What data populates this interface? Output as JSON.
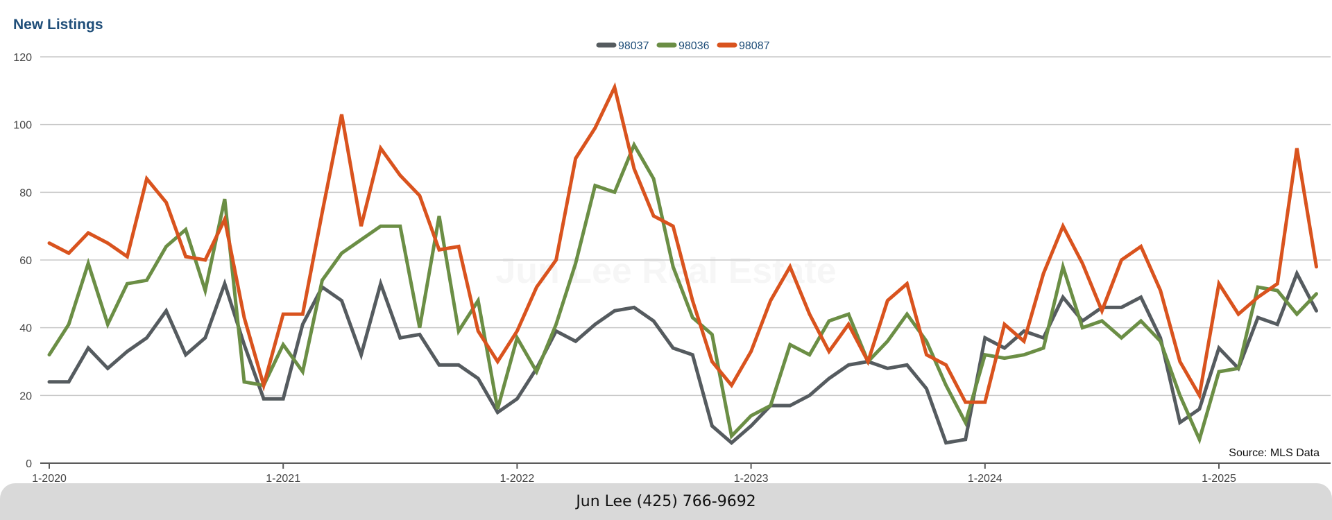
{
  "title": "New Listings",
  "watermark": "Jun Lee Real Estate",
  "source_note": "Source: MLS Data",
  "footer": "Jun Lee (425) 766-9692",
  "chart_data": {
    "type": "line",
    "title": "New Listings",
    "xlabel": "",
    "ylabel": "",
    "ylim": [
      0,
      120
    ],
    "yticks": [
      "0",
      "20",
      "40",
      "60",
      "80",
      "100",
      "120"
    ],
    "xticks": [
      {
        "index": 0,
        "label": "1-2020"
      },
      {
        "index": 12,
        "label": "1-2021"
      },
      {
        "index": 24,
        "label": "1-2022"
      },
      {
        "index": 36,
        "label": "1-2023"
      },
      {
        "index": 48,
        "label": "1-2024"
      },
      {
        "index": 60,
        "label": "1-2025"
      }
    ],
    "x_start": "2020-01",
    "x_end": "2025-06",
    "grid": true,
    "legend_position": "top-center",
    "series": [
      {
        "name": "98037",
        "color": "#555b5f",
        "values": [
          24,
          24,
          34,
          28,
          33,
          37,
          45,
          32,
          37,
          53,
          35,
          19,
          19,
          41,
          52,
          48,
          32,
          53,
          37,
          38,
          29,
          29,
          25,
          15,
          19,
          28,
          39,
          36,
          41,
          45,
          46,
          42,
          34,
          32,
          11,
          6,
          11,
          17,
          17,
          20,
          25,
          29,
          30,
          28,
          29,
          22,
          6,
          7,
          37,
          34,
          39,
          37,
          49,
          42,
          46,
          46,
          49,
          37,
          12,
          16,
          34,
          28,
          43,
          41,
          56,
          45
        ]
      },
      {
        "name": "98036",
        "color": "#6b8e45",
        "values": [
          32,
          41,
          59,
          41,
          53,
          54,
          64,
          69,
          51,
          78,
          24,
          23,
          35,
          27,
          54,
          62,
          66,
          70,
          70,
          40,
          73,
          39,
          48,
          16,
          37,
          27,
          41,
          59,
          82,
          80,
          94,
          84,
          58,
          43,
          38,
          8,
          14,
          17,
          35,
          32,
          42,
          44,
          30,
          36,
          44,
          36,
          23,
          12,
          32,
          31,
          32,
          34,
          58,
          40,
          42,
          37,
          42,
          36,
          20,
          7,
          27,
          28,
          52,
          51,
          44,
          50
        ]
      },
      {
        "name": "98087",
        "color": "#d9531e",
        "values": [
          65,
          62,
          68,
          65,
          61,
          84,
          77,
          61,
          60,
          72,
          43,
          23,
          44,
          44,
          74,
          103,
          70,
          93,
          85,
          79,
          63,
          64,
          39,
          30,
          39,
          52,
          60,
          90,
          99,
          111,
          87,
          73,
          70,
          48,
          30,
          23,
          33,
          48,
          58,
          44,
          33,
          41,
          30,
          48,
          53,
          32,
          29,
          18,
          18,
          41,
          36,
          56,
          70,
          59,
          45,
          60,
          64,
          51,
          30,
          20,
          53,
          44,
          49,
          53,
          93,
          58
        ]
      }
    ]
  }
}
